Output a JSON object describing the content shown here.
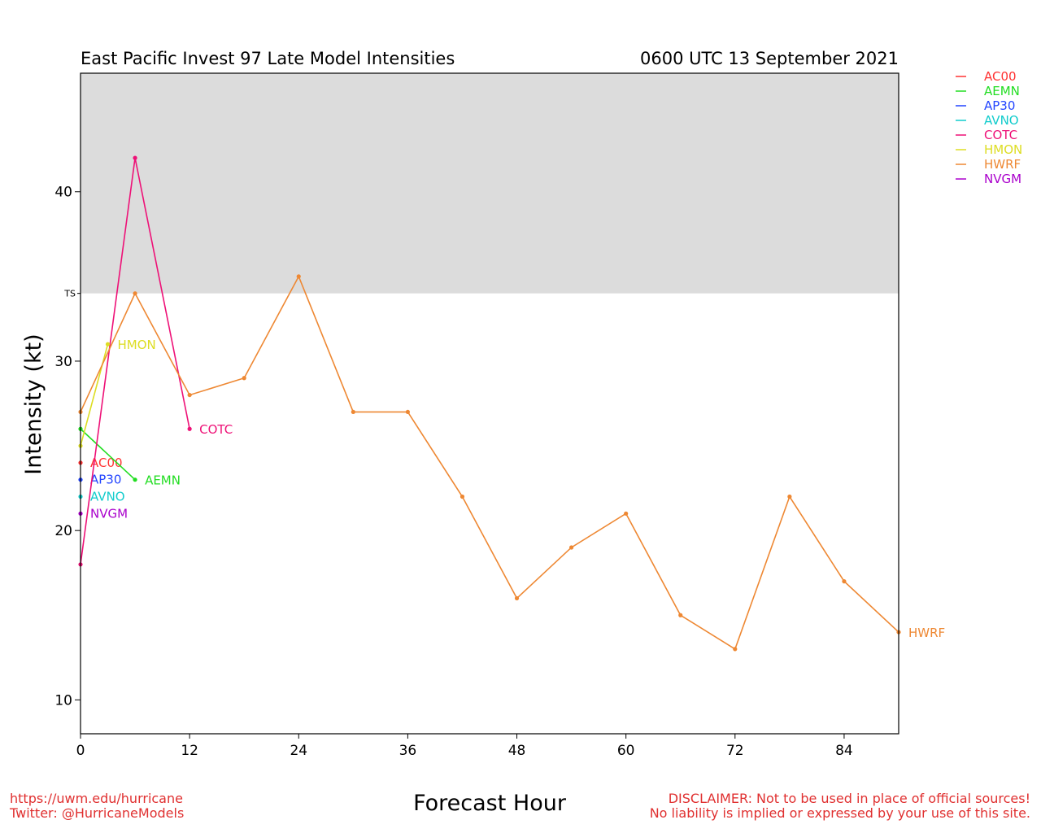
{
  "header": {
    "title_left": "East Pacific Invest 97 Late Model Intensities",
    "title_right": "0600 UTC 13 September 2021"
  },
  "footer": {
    "url": "https://uwm.edu/hurricane",
    "twitter": "Twitter: @HurricaneModels",
    "disclaimer_1": "DISCLAIMER: Not to be used in place of official sources!",
    "disclaimer_2": "No liability is implied or expressed by your use of this site."
  },
  "chart_data": {
    "type": "line",
    "xlabel": "Forecast Hour",
    "ylabel": "Intensity (kt)",
    "xlim": [
      0,
      90
    ],
    "ylim": [
      8,
      47
    ],
    "xticks": [
      0,
      12,
      24,
      36,
      48,
      60,
      72,
      84
    ],
    "yticks": [
      10,
      20,
      30,
      40
    ],
    "threshold": {
      "label": "TS",
      "value": 34,
      "shaded_above": true,
      "shade_color": "#dcdcdc"
    },
    "grid": false,
    "legend_position": "right, outside plot (top)",
    "series": [
      {
        "name": "AC00",
        "color": "#ff3333",
        "x": [
          0
        ],
        "y": [
          24
        ]
      },
      {
        "name": "AEMN",
        "color": "#22dd22",
        "x": [
          0,
          6
        ],
        "y": [
          26,
          23
        ]
      },
      {
        "name": "AP30",
        "color": "#2244ff",
        "x": [
          0
        ],
        "y": [
          23
        ]
      },
      {
        "name": "AVNO",
        "color": "#11cccc",
        "x": [
          0
        ],
        "y": [
          22
        ]
      },
      {
        "name": "COTC",
        "color": "#ee1177",
        "x": [
          0,
          6,
          12
        ],
        "y": [
          18,
          42,
          26
        ]
      },
      {
        "name": "HMON",
        "color": "#dddd22",
        "x": [
          0,
          3
        ],
        "y": [
          25,
          31
        ]
      },
      {
        "name": "HWRF",
        "color": "#ee8833",
        "x": [
          0,
          6,
          12,
          18,
          24,
          30,
          36,
          42,
          48,
          54,
          60,
          66,
          72,
          78,
          84,
          90
        ],
        "y": [
          27,
          34,
          28,
          29,
          35,
          27,
          27,
          22,
          16,
          19,
          21,
          15,
          13,
          22,
          17,
          14
        ]
      },
      {
        "name": "NVGM",
        "color": "#aa00cc",
        "x": [
          0
        ],
        "y": [
          21
        ]
      }
    ]
  }
}
